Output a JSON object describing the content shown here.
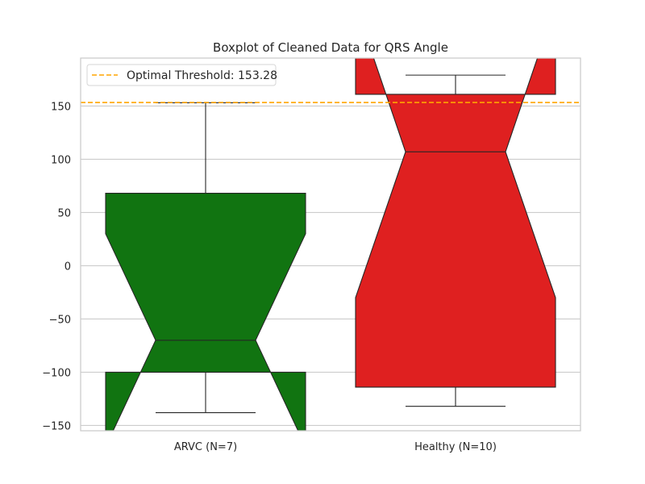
{
  "chart_data": {
    "type": "box",
    "title": "Boxplot of Cleaned Data for QRS Angle",
    "xlabel": "",
    "ylabel": "",
    "ylim": [
      -155,
      195
    ],
    "y_ticks": [
      -150,
      -100,
      -50,
      0,
      50,
      100,
      150
    ],
    "y_tick_labels": [
      "−150",
      "−100",
      "−50",
      "0",
      "50",
      "100",
      "150"
    ],
    "grid": true,
    "notched": true,
    "categories": [
      "ARVC (N=7)",
      "Healthy (N=10)"
    ],
    "boxes": [
      {
        "label": "ARVC (N=7)",
        "color": "#117411",
        "whisker_low": -138,
        "q1": -100,
        "median": -70,
        "q3": 68,
        "whisker_high": 153,
        "notch_low": -170,
        "notch_high": 30
      },
      {
        "label": "Healthy (N=10)",
        "color": "#df2020",
        "whisker_low": -132,
        "q1": -114,
        "median": 107,
        "q3": 161,
        "whisker_high": 179,
        "notch_low": -30,
        "notch_high": 245
      }
    ],
    "threshold": {
      "value": 153.28,
      "label": "Optimal Threshold: 153.28",
      "color": "#ffa500",
      "style": "dashed"
    },
    "legend": {
      "position": "top-left"
    }
  }
}
